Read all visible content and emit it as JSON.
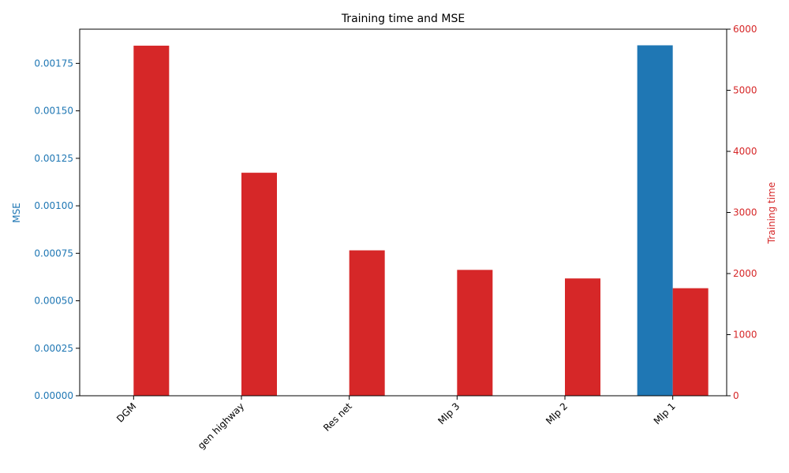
{
  "chart_data": {
    "type": "bar",
    "title": "Training time and MSE",
    "categories": [
      "DGM",
      "gen highway",
      "Res net",
      "Mlp 3",
      "Mlp 2",
      "Mlp 1"
    ],
    "series": [
      {
        "name": "MSE",
        "axis": "left",
        "color": "#1f77b4",
        "values": [
          0.0,
          0.0,
          0.0,
          0.0,
          0.0,
          0.001845
        ]
      },
      {
        "name": "Training time",
        "axis": "right",
        "color": "#d62728",
        "values": [
          5730,
          3650,
          2380,
          2060,
          1920,
          1760
        ]
      }
    ],
    "ylabel_left": "MSE",
    "ylabel_right": "Training time",
    "ylim_left": [
      0,
      0.00193
    ],
    "ylim_right": [
      0,
      6000
    ],
    "yticks_left": [
      "0.00000",
      "0.00025",
      "0.00050",
      "0.00075",
      "0.00100",
      "0.00125",
      "0.00150",
      "0.00175"
    ],
    "yticks_right": [
      "0",
      "1000",
      "2000",
      "3000",
      "4000",
      "5000",
      "6000"
    ],
    "xtick_rotation": 45,
    "grid": false,
    "legend": "none"
  }
}
